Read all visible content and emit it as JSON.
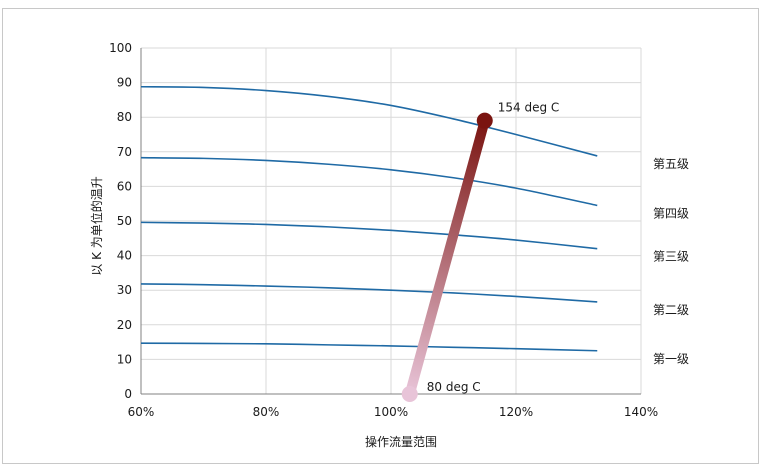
{
  "chart_data": {
    "type": "line",
    "xlabel": "操作流量范围",
    "ylabel": "以 K 为单位的温升",
    "xlim": [
      0.6,
      1.4
    ],
    "ylim": [
      0,
      100
    ],
    "x_ticks": [
      "60%",
      "80%",
      "100%",
      "120%",
      "140%"
    ],
    "y_ticks": [
      "0",
      "10",
      "20",
      "30",
      "40",
      "50",
      "60",
      "70",
      "80",
      "90",
      "100"
    ],
    "grid": true,
    "series": [
      {
        "name": "第一级",
        "x": [
          0.6,
          0.7,
          0.8,
          0.9,
          1.0,
          1.1,
          1.2,
          1.33
        ],
        "y": [
          14.7,
          14.6,
          14.5,
          14.2,
          13.9,
          13.5,
          13.1,
          12.5
        ]
      },
      {
        "name": "第二级",
        "x": [
          0.6,
          0.7,
          0.8,
          0.9,
          1.0,
          1.1,
          1.2,
          1.33
        ],
        "y": [
          31.8,
          31.6,
          31.2,
          30.7,
          30.0,
          29.2,
          28.2,
          26.6
        ]
      },
      {
        "name": "第三级",
        "x": [
          0.6,
          0.7,
          0.8,
          0.9,
          1.0,
          1.1,
          1.2,
          1.33
        ],
        "y": [
          49.6,
          49.4,
          49.0,
          48.3,
          47.3,
          46.0,
          44.5,
          42.0
        ]
      },
      {
        "name": "第四级",
        "x": [
          0.6,
          0.7,
          0.8,
          0.9,
          1.0,
          1.1,
          1.2,
          1.33
        ],
        "y": [
          68.3,
          68.1,
          67.5,
          66.4,
          64.8,
          62.5,
          59.5,
          54.5
        ]
      },
      {
        "name": "第五级",
        "x": [
          0.6,
          0.7,
          0.8,
          0.9,
          1.0,
          1.1,
          1.2,
          1.33
        ],
        "y": [
          88.8,
          88.6,
          87.7,
          86.0,
          83.4,
          79.5,
          75.0,
          68.8
        ]
      }
    ],
    "operating_line": {
      "start": {
        "x": 1.03,
        "y": 0,
        "label": "80 deg C"
      },
      "end": {
        "x": 1.15,
        "y": 79,
        "label": "154 deg C"
      }
    }
  },
  "colors": {
    "series_line": "#1f6aa5",
    "grid": "#d9d9d9",
    "axis": "#808080",
    "gradient_start": "#e8c4d8",
    "gradient_end": "#7a1410"
  }
}
